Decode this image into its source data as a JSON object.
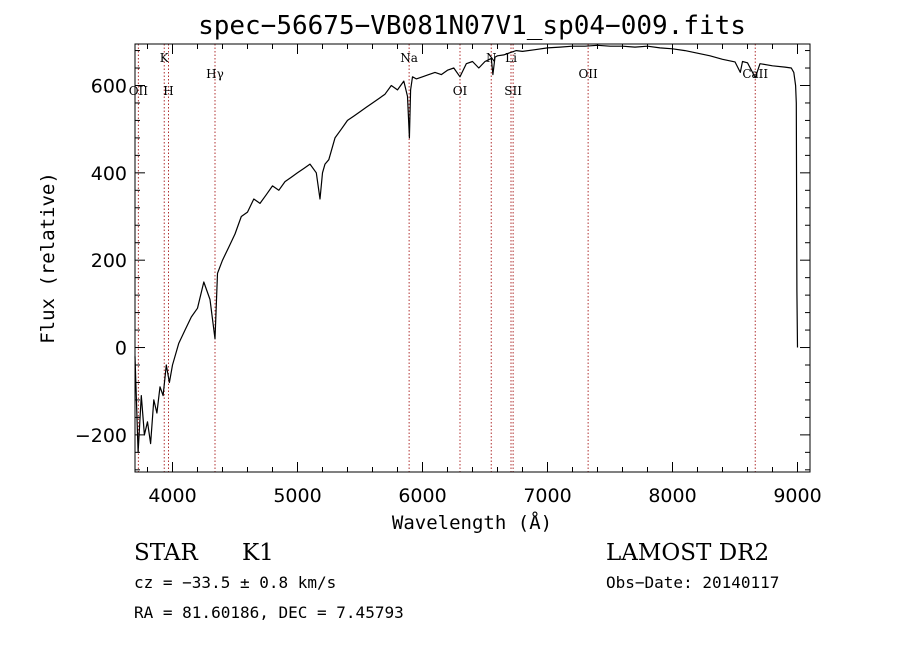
{
  "chart_data": {
    "type": "line",
    "title": "spec−56675−VB081N07V1_sp04−009.fits",
    "xlabel": "Wavelength (Å)",
    "ylabel": "Flux (relative)",
    "xlim": [
      3700,
      9100
    ],
    "ylim": [
      -285,
      695
    ],
    "x_ticks": [
      4000,
      5000,
      6000,
      7000,
      8000,
      9000
    ],
    "y_ticks": [
      -200,
      0,
      200,
      400,
      600
    ],
    "y_tick_labels": [
      "−200",
      "0",
      "200",
      "400",
      "600"
    ],
    "series": [
      {
        "color": "#000000",
        "x": [
          3700,
          3725,
          3750,
          3775,
          3800,
          3825,
          3850,
          3875,
          3900,
          3925,
          3950,
          3975,
          4000,
          4050,
          4100,
          4150,
          4200,
          4250,
          4300,
          4340,
          4360,
          4400,
          4450,
          4500,
          4550,
          4600,
          4650,
          4700,
          4750,
          4800,
          4850,
          4900,
          4950,
          5000,
          5050,
          5100,
          5150,
          5180,
          5200,
          5220,
          5250,
          5300,
          5350,
          5400,
          5450,
          5500,
          5550,
          5600,
          5650,
          5700,
          5750,
          5800,
          5850,
          5880,
          5895,
          5905,
          5920,
          5950,
          6000,
          6050,
          6100,
          6150,
          6200,
          6250,
          6300,
          6350,
          6400,
          6450,
          6500,
          6550,
          6563,
          6580,
          6600,
          6650,
          6700,
          6750,
          6800,
          6900,
          7000,
          7100,
          7200,
          7300,
          7400,
          7500,
          7600,
          7700,
          7800,
          7900,
          8000,
          8100,
          8200,
          8300,
          8400,
          8500,
          8542,
          8560,
          8600,
          8662,
          8700,
          8800,
          8900,
          8950,
          8970,
          8985,
          8990,
          8995,
          9000
        ],
        "y": [
          -20,
          -240,
          -110,
          -200,
          -170,
          -220,
          -120,
          -150,
          -90,
          -110,
          -40,
          -80,
          -40,
          10,
          40,
          70,
          90,
          150,
          110,
          20,
          170,
          200,
          230,
          260,
          300,
          310,
          340,
          330,
          350,
          370,
          360,
          380,
          390,
          400,
          410,
          420,
          400,
          340,
          400,
          420,
          430,
          480,
          500,
          520,
          530,
          540,
          550,
          560,
          570,
          580,
          600,
          590,
          610,
          575,
          480,
          590,
          620,
          615,
          620,
          625,
          630,
          625,
          635,
          640,
          620,
          650,
          655,
          640,
          655,
          662,
          625,
          665,
          668,
          670,
          675,
          680,
          678,
          682,
          686,
          688,
          690,
          690,
          692,
          690,
          690,
          688,
          690,
          686,
          684,
          680,
          674,
          668,
          660,
          654,
          630,
          655,
          652,
          618,
          650,
          645,
          642,
          640,
          630,
          600,
          560,
          130,
          0
        ]
      }
    ],
    "spectral_lines": [
      {
        "label": "OII",
        "x": 3727,
        "pos": "low"
      },
      {
        "label": "K",
        "x": 3934,
        "pos": "high"
      },
      {
        "label": "H",
        "x": 3968,
        "pos": "low"
      },
      {
        "label": "Hγ",
        "x": 4340,
        "pos": "mid"
      },
      {
        "label": "Na",
        "x": 5893,
        "pos": "high"
      },
      {
        "label": "OI",
        "x": 6300,
        "pos": "low"
      },
      {
        "label": "N",
        "x": 6550,
        "pos": "high"
      },
      {
        "label": "Li",
        "x": 6708,
        "pos": "high"
      },
      {
        "label": "SII",
        "x": 6725,
        "pos": "low"
      },
      {
        "label": "OII",
        "x": 7325,
        "pos": "mid"
      },
      {
        "label": "CaII",
        "x": 8662,
        "pos": "mid"
      }
    ],
    "grid": false,
    "legend": "none"
  },
  "info": {
    "object_type": "STAR",
    "subclass": "K1",
    "survey": "LAMOST DR2",
    "cz": "cz = −33.5 ± 0.8 km/s",
    "obs_date": "Obs−Date: 20140117",
    "coords": "RA =  81.60186, DEC =    7.45793"
  }
}
